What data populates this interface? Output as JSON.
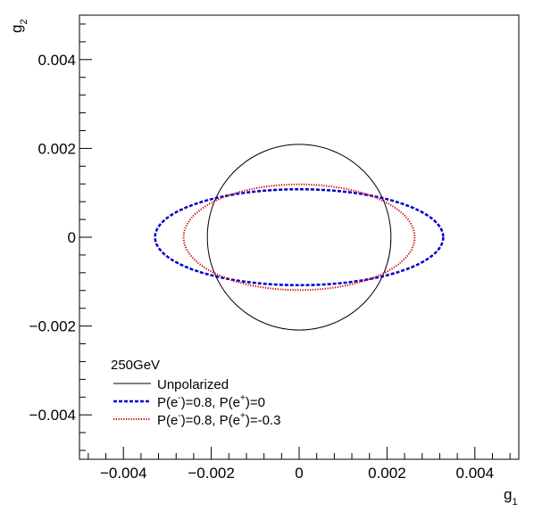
{
  "chart_data": {
    "type": "line",
    "subtype": "contour-ellipses",
    "xlabel": "g",
    "xlabel_sub": "1",
    "ylabel": "g",
    "ylabel_sub": "2",
    "xlim": [
      -0.005,
      0.005
    ],
    "ylim": [
      -0.005,
      0.005
    ],
    "xticks": [
      -0.004,
      -0.002,
      0,
      0.002,
      0.004
    ],
    "xtick_labels": [
      "−0.004",
      "−0.002",
      "0",
      "0.002",
      "0.004"
    ],
    "yticks": [
      -0.004,
      -0.002,
      0,
      0.002,
      0.004
    ],
    "ytick_labels": [
      "−0.004",
      "−0.002",
      "0",
      "0.002",
      "0.004"
    ],
    "grid": false,
    "legend_position": "bottom-left",
    "legend_header": "250GeV",
    "series": [
      {
        "name": "Unpolarized",
        "color": "#000000",
        "style": "solid",
        "center": [
          0.0,
          0.0
        ],
        "semi_axis_x": 0.00209,
        "semi_axis_y": 0.00209
      },
      {
        "name_parts": [
          "P(e",
          "-",
          ")=0.8, P(e",
          "+",
          ")=0"
        ],
        "color": "#0000cc",
        "style": "dashed",
        "center": [
          0.0,
          0.0
        ],
        "semi_axis_x": 0.00328,
        "semi_axis_y": 0.00108
      },
      {
        "name_parts": [
          "P(e",
          "-",
          ")=0.8, P(e",
          "+",
          ")=-0.3"
        ],
        "color": "#cc0000",
        "style": "dotted",
        "center": [
          0.0,
          0.0
        ],
        "semi_axis_x": 0.00263,
        "semi_axis_y": 0.00119
      }
    ]
  }
}
